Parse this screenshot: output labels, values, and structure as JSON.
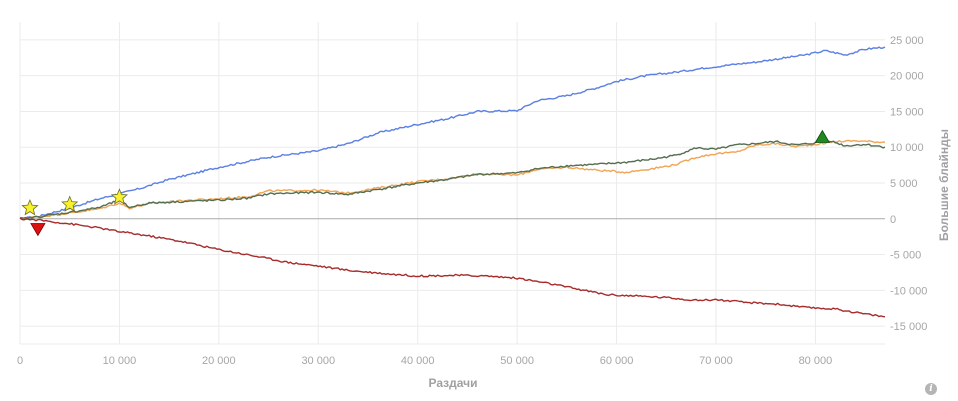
{
  "chart_data": {
    "type": "line",
    "xlabel": "Раздачи",
    "ylabel": "Большие блайнды",
    "xlim": [
      0,
      87000
    ],
    "ylim": [
      -17500,
      27500
    ],
    "grid": true,
    "x_ticks": [
      {
        "value": 0,
        "label": "0"
      },
      {
        "value": 10000,
        "label": "10 000"
      },
      {
        "value": 20000,
        "label": "20 000"
      },
      {
        "value": 30000,
        "label": "30 000"
      },
      {
        "value": 40000,
        "label": "40 000"
      },
      {
        "value": 50000,
        "label": "50 000"
      },
      {
        "value": 60000,
        "label": "60 000"
      },
      {
        "value": 70000,
        "label": "70 000"
      },
      {
        "value": 80000,
        "label": "80 000"
      }
    ],
    "y_ticks": [
      {
        "value": 25000,
        "label": "25 000"
      },
      {
        "value": 20000,
        "label": "20 000"
      },
      {
        "value": 15000,
        "label": "15 000"
      },
      {
        "value": 10000,
        "label": "10 000"
      },
      {
        "value": 5000,
        "label": "5 000"
      },
      {
        "value": 0,
        "label": "0"
      },
      {
        "value": -5000,
        "label": "-5 000"
      },
      {
        "value": -10000,
        "label": "-10 000"
      },
      {
        "value": -15000,
        "label": "-15 000"
      }
    ],
    "series": [
      {
        "color": "#5b7fe3",
        "points": [
          [
            0,
            0
          ],
          [
            2000,
            400
          ],
          [
            5000,
            1500
          ],
          [
            8000,
            2800
          ],
          [
            10000,
            3500
          ],
          [
            12000,
            4200
          ],
          [
            15000,
            5500
          ],
          [
            18000,
            6500
          ],
          [
            20000,
            7200
          ],
          [
            25000,
            8600
          ],
          [
            30000,
            9500
          ],
          [
            33000,
            10500
          ],
          [
            36000,
            12000
          ],
          [
            40000,
            13200
          ],
          [
            43000,
            14000
          ],
          [
            46000,
            15000
          ],
          [
            50000,
            15100
          ],
          [
            52000,
            16500
          ],
          [
            55000,
            17200
          ],
          [
            58000,
            18300
          ],
          [
            60000,
            19200
          ],
          [
            63000,
            20000
          ],
          [
            66000,
            20500
          ],
          [
            69000,
            21100
          ],
          [
            72000,
            21600
          ],
          [
            74000,
            21900
          ],
          [
            76000,
            22300
          ],
          [
            79000,
            22900
          ],
          [
            81000,
            23500
          ],
          [
            83000,
            22900
          ],
          [
            85000,
            23700
          ],
          [
            87000,
            24000
          ]
        ]
      },
      {
        "color": "#f2a455",
        "points": [
          [
            0,
            0
          ],
          [
            2000,
            300
          ],
          [
            5000,
            800
          ],
          [
            8000,
            1400
          ],
          [
            10000,
            2200
          ],
          [
            11000,
            1500
          ],
          [
            13000,
            2100
          ],
          [
            16000,
            2500
          ],
          [
            20000,
            2800
          ],
          [
            23000,
            3100
          ],
          [
            25000,
            3900
          ],
          [
            30000,
            4000
          ],
          [
            33000,
            3600
          ],
          [
            36000,
            4300
          ],
          [
            40000,
            5200
          ],
          [
            43000,
            5600
          ],
          [
            46000,
            6300
          ],
          [
            50000,
            6100
          ],
          [
            52000,
            6900
          ],
          [
            55000,
            7200
          ],
          [
            58000,
            6800
          ],
          [
            61000,
            6500
          ],
          [
            64000,
            7100
          ],
          [
            66000,
            7600
          ],
          [
            68000,
            8600
          ],
          [
            70000,
            9100
          ],
          [
            72000,
            9300
          ],
          [
            74000,
            10300
          ],
          [
            76000,
            10500
          ],
          [
            78000,
            10100
          ],
          [
            80000,
            10400
          ],
          [
            82000,
            10800
          ],
          [
            84000,
            10900
          ],
          [
            87000,
            10700
          ]
        ]
      },
      {
        "color": "#556e50",
        "points": [
          [
            0,
            0
          ],
          [
            2000,
            300
          ],
          [
            5000,
            900
          ],
          [
            8000,
            1600
          ],
          [
            10000,
            2600
          ],
          [
            11000,
            1600
          ],
          [
            13000,
            2200
          ],
          [
            16000,
            2400
          ],
          [
            20000,
            2600
          ],
          [
            23000,
            2900
          ],
          [
            25000,
            3500
          ],
          [
            30000,
            3700
          ],
          [
            33000,
            3400
          ],
          [
            36000,
            4100
          ],
          [
            40000,
            5000
          ],
          [
            43000,
            5500
          ],
          [
            46000,
            6200
          ],
          [
            50000,
            6400
          ],
          [
            52000,
            7000
          ],
          [
            55000,
            7400
          ],
          [
            58000,
            7600
          ],
          [
            61000,
            7900
          ],
          [
            64000,
            8400
          ],
          [
            66000,
            8900
          ],
          [
            68000,
            9900
          ],
          [
            70000,
            9700
          ],
          [
            72000,
            10300
          ],
          [
            74000,
            10500
          ],
          [
            76000,
            10800
          ],
          [
            78000,
            10300
          ],
          [
            80000,
            10600
          ],
          [
            81000,
            11100
          ],
          [
            83000,
            10200
          ],
          [
            85000,
            10400
          ],
          [
            87000,
            10000
          ]
        ]
      },
      {
        "color": "#a72b2b",
        "points": [
          [
            0,
            0
          ],
          [
            2000,
            -200
          ],
          [
            5000,
            -700
          ],
          [
            8000,
            -1300
          ],
          [
            10000,
            -1800
          ],
          [
            13000,
            -2400
          ],
          [
            16000,
            -3100
          ],
          [
            20000,
            -4300
          ],
          [
            24000,
            -5300
          ],
          [
            27000,
            -6100
          ],
          [
            30000,
            -6600
          ],
          [
            33000,
            -7200
          ],
          [
            37000,
            -7700
          ],
          [
            40000,
            -8000
          ],
          [
            44000,
            -7900
          ],
          [
            47000,
            -8000
          ],
          [
            50000,
            -8300
          ],
          [
            53000,
            -9000
          ],
          [
            56000,
            -9800
          ],
          [
            59000,
            -10600
          ],
          [
            62000,
            -10800
          ],
          [
            65000,
            -11000
          ],
          [
            68000,
            -11400
          ],
          [
            70000,
            -11300
          ],
          [
            73000,
            -11700
          ],
          [
            76000,
            -11900
          ],
          [
            79000,
            -12400
          ],
          [
            82000,
            -12600
          ],
          [
            85000,
            -13300
          ],
          [
            87000,
            -13700
          ]
        ]
      }
    ],
    "markers": [
      {
        "shape": "star",
        "color": "#f7f22b",
        "x": 1000,
        "y": 1500
      },
      {
        "shape": "star",
        "color": "#f7f22b",
        "x": 5000,
        "y": 2000
      },
      {
        "shape": "star",
        "color": "#f7f22b",
        "x": 10000,
        "y": 3000
      },
      {
        "shape": "triangle-down",
        "color": "#dd1111",
        "x": 1800,
        "y": -1500
      },
      {
        "shape": "triangle-up",
        "color": "#1f8a1f",
        "x": 80700,
        "y": 11500
      }
    ],
    "zero_line_color": "#aaaaaa",
    "grid_color": "#ebebeb"
  },
  "info_icon": "info-icon"
}
